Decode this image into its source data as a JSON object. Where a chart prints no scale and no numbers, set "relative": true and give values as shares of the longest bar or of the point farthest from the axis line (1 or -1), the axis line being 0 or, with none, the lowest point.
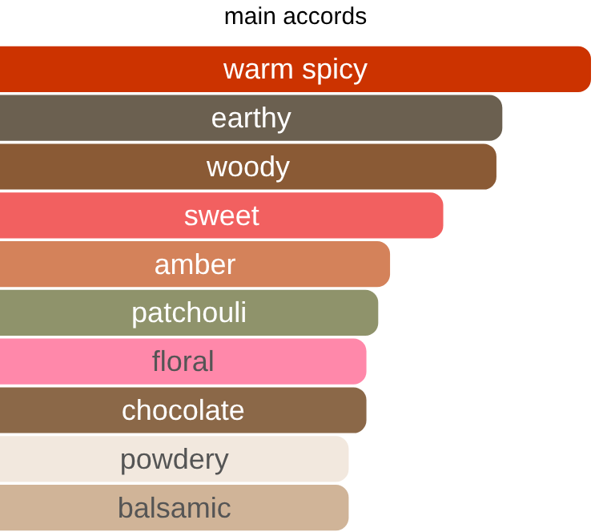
{
  "chart_data": {
    "type": "bar",
    "orientation": "horizontal",
    "relative": true,
    "title": "main accords",
    "categories": [
      "warm spicy",
      "earthy",
      "woody",
      "sweet",
      "amber",
      "patchouli",
      "floral",
      "chocolate",
      "powdery",
      "balsamic"
    ],
    "values": [
      1,
      0.85,
      0.84,
      0.75,
      0.66,
      0.64,
      0.62,
      0.62,
      0.59,
      0.59
    ],
    "colors": [
      "#cc3300",
      "#6b6050",
      "#8a5a35",
      "#f26060",
      "#d4825a",
      "#8f936b",
      "#ff88aa",
      "#8b6848",
      "#f2e8de",
      "#d0b498"
    ],
    "legend": false
  }
}
